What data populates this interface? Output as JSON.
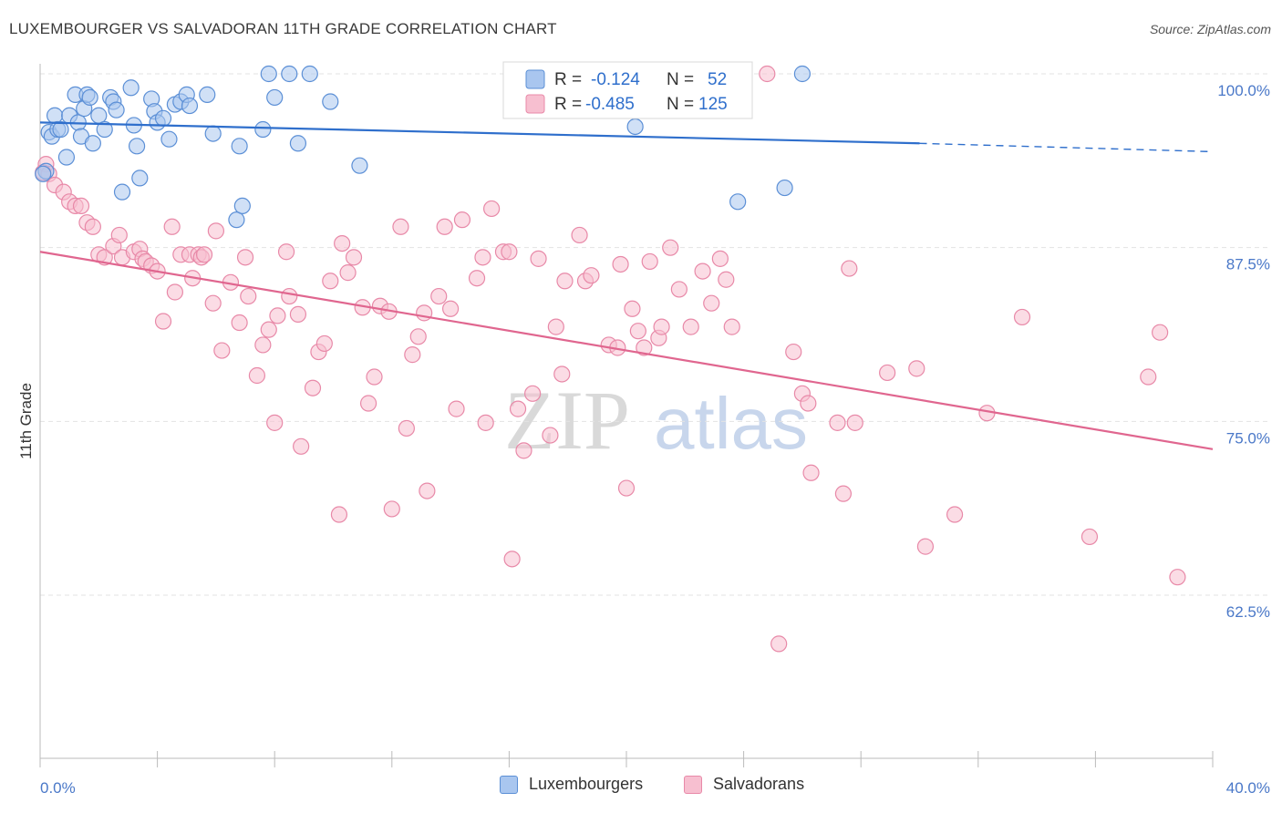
{
  "title": "LUXEMBOURGER VS SALVADORAN 11TH GRADE CORRELATION CHART",
  "source": "Source: ZipAtlas.com",
  "watermark": {
    "zip": "ZIP",
    "atlas": "atlas"
  },
  "colors": {
    "blue_fill": "#a9c6ef",
    "blue_stroke": "#5b8fd6",
    "blue_line": "#2f6fcc",
    "pink_fill": "#f7bfd0",
    "pink_stroke": "#e889a8",
    "pink_line": "#e0668f",
    "axis_label": "#4a78c8"
  },
  "legend": {
    "rows": [
      {
        "r_label": "R =",
        "r_value": "-0.124",
        "n_label": "N =",
        "n_value": "52"
      },
      {
        "r_label": "R =",
        "r_value": "-0.485",
        "n_label": "N =",
        "n_value": "125"
      }
    ]
  },
  "bottom_legend": {
    "series1": "Luxembourgers",
    "series2": "Salvadorans"
  },
  "chart_data": {
    "type": "scatter",
    "title": "LUXEMBOURGER VS SALVADORAN 11TH GRADE CORRELATION CHART",
    "xlabel": "",
    "ylabel": "11th Grade",
    "xlim": [
      0,
      40
    ],
    "ylim": [
      50,
      102
    ],
    "x_tick_labels": [
      "0.0%",
      "40.0%"
    ],
    "y_ticks": [
      62.5,
      75.0,
      87.5,
      100.0
    ],
    "y_tick_labels": [
      "62.5%",
      "75.0%",
      "87.5%",
      "100.0%"
    ],
    "grid": "horizontal dashed",
    "series": [
      {
        "name": "Luxembourgers",
        "r": -0.124,
        "n": 52,
        "trend": {
          "x0": 0,
          "y0": 96.5,
          "x1": 30,
          "y1": 95.0,
          "dashed_to_x": 40,
          "dashed_to_y": 94.4
        },
        "points": [
          [
            0.2,
            93.0
          ],
          [
            0.3,
            95.8
          ],
          [
            0.4,
            95.5
          ],
          [
            0.5,
            97.0
          ],
          [
            0.6,
            96.0
          ],
          [
            0.7,
            96.0
          ],
          [
            0.9,
            94.0
          ],
          [
            1.0,
            97.0
          ],
          [
            1.2,
            98.5
          ],
          [
            1.3,
            96.5
          ],
          [
            1.4,
            95.5
          ],
          [
            1.5,
            97.5
          ],
          [
            1.6,
            98.5
          ],
          [
            1.7,
            98.3
          ],
          [
            1.8,
            95.0
          ],
          [
            2.0,
            97.0
          ],
          [
            2.2,
            96.0
          ],
          [
            2.4,
            98.3
          ],
          [
            2.5,
            98.0
          ],
          [
            2.6,
            97.4
          ],
          [
            2.8,
            91.5
          ],
          [
            3.1,
            99.0
          ],
          [
            3.2,
            96.3
          ],
          [
            3.3,
            94.8
          ],
          [
            3.4,
            92.5
          ],
          [
            3.8,
            98.2
          ],
          [
            3.9,
            97.3
          ],
          [
            4.0,
            96.5
          ],
          [
            4.2,
            96.8
          ],
          [
            4.4,
            95.3
          ],
          [
            4.6,
            97.8
          ],
          [
            4.8,
            98.0
          ],
          [
            5.0,
            98.5
          ],
          [
            5.1,
            97.7
          ],
          [
            5.7,
            98.5
          ],
          [
            5.9,
            95.7
          ],
          [
            6.7,
            89.5
          ],
          [
            6.8,
            94.8
          ],
          [
            6.9,
            90.5
          ],
          [
            7.6,
            96.0
          ],
          [
            7.8,
            100.0
          ],
          [
            8.0,
            98.3
          ],
          [
            8.5,
            100.0
          ],
          [
            8.8,
            95.0
          ],
          [
            9.2,
            100.0
          ],
          [
            9.9,
            98.0
          ],
          [
            10.9,
            93.4
          ],
          [
            20.3,
            96.2
          ],
          [
            23.8,
            90.8
          ],
          [
            25.4,
            91.8
          ],
          [
            26.0,
            100.0
          ],
          [
            0.1,
            92.8
          ]
        ]
      },
      {
        "name": "Salvadorans",
        "r": -0.485,
        "n": 125,
        "trend": {
          "x0": 0,
          "y0": 87.2,
          "x1": 40,
          "y1": 73.0
        },
        "points": [
          [
            0.2,
            93.5
          ],
          [
            0.3,
            92.8
          ],
          [
            0.5,
            92.0
          ],
          [
            0.8,
            91.5
          ],
          [
            1.0,
            90.8
          ],
          [
            1.2,
            90.5
          ],
          [
            1.4,
            90.5
          ],
          [
            1.6,
            89.3
          ],
          [
            1.8,
            89.0
          ],
          [
            2.0,
            87.0
          ],
          [
            2.2,
            86.8
          ],
          [
            2.5,
            87.6
          ],
          [
            2.7,
            88.4
          ],
          [
            2.8,
            86.8
          ],
          [
            3.2,
            87.2
          ],
          [
            3.4,
            87.4
          ],
          [
            3.5,
            86.7
          ],
          [
            3.6,
            86.5
          ],
          [
            3.8,
            86.2
          ],
          [
            4.0,
            85.8
          ],
          [
            4.2,
            82.2
          ],
          [
            4.5,
            89.0
          ],
          [
            4.6,
            84.3
          ],
          [
            4.8,
            87.0
          ],
          [
            5.1,
            87.0
          ],
          [
            5.2,
            85.3
          ],
          [
            5.4,
            87.0
          ],
          [
            5.5,
            86.8
          ],
          [
            5.6,
            87.0
          ],
          [
            5.9,
            83.5
          ],
          [
            6.0,
            88.7
          ],
          [
            6.2,
            80.1
          ],
          [
            6.5,
            85.0
          ],
          [
            6.8,
            82.1
          ],
          [
            7.0,
            86.8
          ],
          [
            7.1,
            84.0
          ],
          [
            7.4,
            78.3
          ],
          [
            7.6,
            80.5
          ],
          [
            7.8,
            81.6
          ],
          [
            8.0,
            74.9
          ],
          [
            8.1,
            82.6
          ],
          [
            8.4,
            87.2
          ],
          [
            8.5,
            84.0
          ],
          [
            8.8,
            82.7
          ],
          [
            8.9,
            73.2
          ],
          [
            9.3,
            77.4
          ],
          [
            9.5,
            80.0
          ],
          [
            9.7,
            80.6
          ],
          [
            9.9,
            85.1
          ],
          [
            10.2,
            68.3
          ],
          [
            10.3,
            87.8
          ],
          [
            10.5,
            85.7
          ],
          [
            10.7,
            86.8
          ],
          [
            11.0,
            83.2
          ],
          [
            11.2,
            76.3
          ],
          [
            11.4,
            78.2
          ],
          [
            11.6,
            83.3
          ],
          [
            11.9,
            82.9
          ],
          [
            12.0,
            68.7
          ],
          [
            12.3,
            89.0
          ],
          [
            12.5,
            74.5
          ],
          [
            12.7,
            79.8
          ],
          [
            12.9,
            81.1
          ],
          [
            13.1,
            82.8
          ],
          [
            13.2,
            70.0
          ],
          [
            13.6,
            84.0
          ],
          [
            13.8,
            89.0
          ],
          [
            14.0,
            83.1
          ],
          [
            14.2,
            75.9
          ],
          [
            14.4,
            89.5
          ],
          [
            14.9,
            85.3
          ],
          [
            15.1,
            86.8
          ],
          [
            15.2,
            74.9
          ],
          [
            15.4,
            90.3
          ],
          [
            15.8,
            87.2
          ],
          [
            16.0,
            87.2
          ],
          [
            16.1,
            65.1
          ],
          [
            16.3,
            75.9
          ],
          [
            16.5,
            72.9
          ],
          [
            16.8,
            77.0
          ],
          [
            17.0,
            86.7
          ],
          [
            17.4,
            74.0
          ],
          [
            17.6,
            81.8
          ],
          [
            17.8,
            78.4
          ],
          [
            17.9,
            85.1
          ],
          [
            18.4,
            88.4
          ],
          [
            18.6,
            85.1
          ],
          [
            18.8,
            85.5
          ],
          [
            19.4,
            80.5
          ],
          [
            19.7,
            80.3
          ],
          [
            19.8,
            86.3
          ],
          [
            20.0,
            70.2
          ],
          [
            20.2,
            83.1
          ],
          [
            20.4,
            81.5
          ],
          [
            20.6,
            80.3
          ],
          [
            20.8,
            86.5
          ],
          [
            21.1,
            81.0
          ],
          [
            21.2,
            81.8
          ],
          [
            21.5,
            87.5
          ],
          [
            21.8,
            84.5
          ],
          [
            22.2,
            81.8
          ],
          [
            22.6,
            85.8
          ],
          [
            22.9,
            83.5
          ],
          [
            23.2,
            86.7
          ],
          [
            23.4,
            85.2
          ],
          [
            23.6,
            81.8
          ],
          [
            24.8,
            100.0
          ],
          [
            25.2,
            59.0
          ],
          [
            25.7,
            80.0
          ],
          [
            26.0,
            77.0
          ],
          [
            26.2,
            76.3
          ],
          [
            26.3,
            71.3
          ],
          [
            27.2,
            74.9
          ],
          [
            27.4,
            69.8
          ],
          [
            27.6,
            86.0
          ],
          [
            27.8,
            74.9
          ],
          [
            28.9,
            78.5
          ],
          [
            29.9,
            78.8
          ],
          [
            30.2,
            66.0
          ],
          [
            31.2,
            68.3
          ],
          [
            32.3,
            75.6
          ],
          [
            33.5,
            82.5
          ],
          [
            35.8,
            66.7
          ],
          [
            37.8,
            78.2
          ],
          [
            38.2,
            81.4
          ],
          [
            38.8,
            63.8
          ],
          [
            0.1,
            92.9
          ]
        ]
      }
    ]
  }
}
